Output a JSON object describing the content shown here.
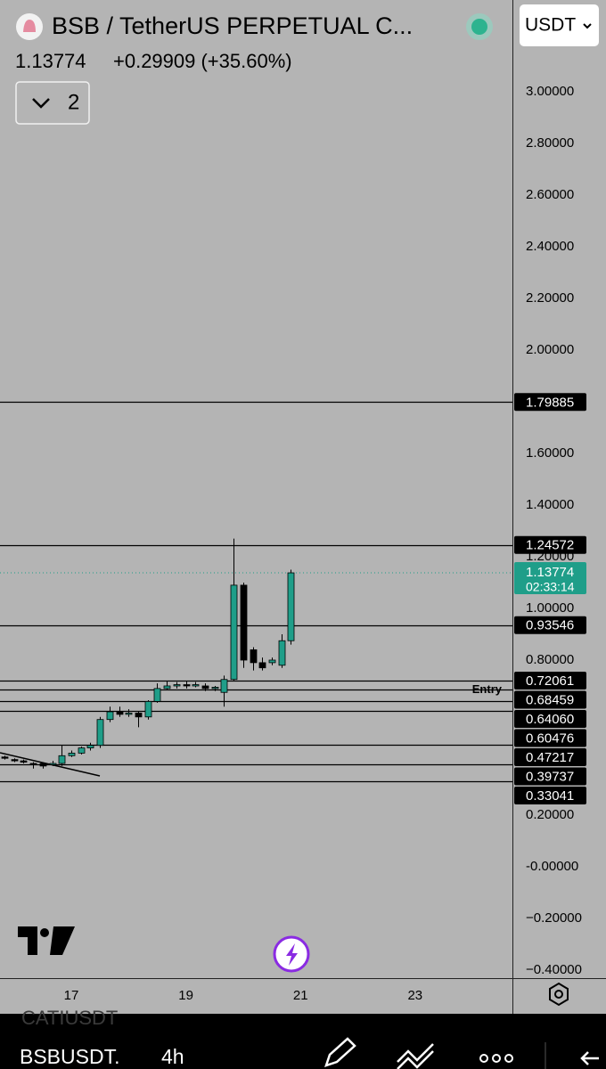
{
  "header": {
    "title": "BSB / TetherUS PERPETUAL C...",
    "price": "1.13774",
    "change": "+0.29909 (+35.60%)",
    "indicator_count": "2",
    "currency": "USDT"
  },
  "chart_data": {
    "type": "candlestick",
    "x": [
      15.833,
      16.0,
      16.167,
      16.333,
      16.5,
      16.667,
      16.833,
      17.0,
      17.167,
      17.333,
      17.5,
      17.667,
      17.833,
      18.0,
      18.167,
      18.333,
      18.5,
      18.667,
      18.833,
      19.0,
      19.167,
      19.333,
      19.5,
      19.667,
      19.833,
      20.0,
      20.167,
      20.333,
      20.5,
      20.667,
      20.833
    ],
    "open": [
      0.425,
      0.415,
      0.41,
      0.4,
      0.4,
      0.395,
      0.4,
      0.43,
      0.44,
      0.46,
      0.47,
      0.57,
      0.6,
      0.59,
      0.595,
      0.58,
      0.64,
      0.69,
      0.7,
      0.705,
      0.7,
      0.7,
      0.69,
      0.675,
      0.725,
      1.09,
      0.84,
      0.79,
      0.79,
      0.78,
      0.875
    ],
    "high": [
      0.43,
      0.42,
      0.415,
      0.405,
      0.405,
      0.41,
      0.47,
      0.45,
      0.465,
      0.48,
      0.58,
      0.62,
      0.62,
      0.61,
      0.6,
      0.645,
      0.71,
      0.72,
      0.715,
      0.72,
      0.715,
      0.71,
      0.7,
      0.74,
      1.27,
      1.1,
      0.85,
      0.81,
      0.81,
      0.9,
      1.15
    ],
    "low": [
      0.415,
      0.405,
      0.4,
      0.38,
      0.38,
      0.39,
      0.39,
      0.425,
      0.435,
      0.45,
      0.46,
      0.56,
      0.58,
      0.58,
      0.54,
      0.57,
      0.635,
      0.685,
      0.69,
      0.69,
      0.695,
      0.68,
      0.68,
      0.62,
      0.72,
      0.77,
      0.76,
      0.76,
      0.78,
      0.77,
      0.86
    ],
    "close": [
      0.42,
      0.41,
      0.405,
      0.395,
      0.39,
      0.4,
      0.43,
      0.44,
      0.46,
      0.47,
      0.57,
      0.6,
      0.59,
      0.595,
      0.58,
      0.64,
      0.69,
      0.7,
      0.705,
      0.7,
      0.705,
      0.69,
      0.695,
      0.725,
      1.09,
      0.8,
      0.79,
      0.77,
      0.8,
      0.875,
      1.13774
    ],
    "up_color": "#1f9e89",
    "down_color": "#000000",
    "xlim": [
      15.756,
      24.698
    ],
    "xticks": [
      17,
      19,
      21,
      23
    ],
    "ylim": [
      -0.431,
      3.355
    ],
    "yticks": [
      {
        "value": 3.0,
        "label": "3.00000"
      },
      {
        "value": 2.8,
        "label": "2.80000"
      },
      {
        "value": 2.6,
        "label": "2.60000"
      },
      {
        "value": 2.4,
        "label": "2.40000"
      },
      {
        "value": 2.2,
        "label": "2.20000"
      },
      {
        "value": 2.0,
        "label": "2.00000"
      },
      {
        "value": 1.6,
        "label": "1.60000"
      },
      {
        "value": 1.4,
        "label": "1.40000"
      },
      {
        "value": 1.2,
        "label": "1.20000"
      },
      {
        "value": 1.0,
        "label": "1.00000"
      },
      {
        "value": 0.8,
        "label": "0.80000"
      },
      {
        "value": 0.2,
        "label": "0.20000"
      },
      {
        "value": 0,
        "label": "-0.00000"
      },
      {
        "value": -0.2,
        "label": "−0.20000"
      },
      {
        "value": -0.4,
        "label": "−0.40000"
      }
    ],
    "grid": false,
    "levels": [
      {
        "value": 1.79885,
        "label": "1.79885"
      },
      {
        "value": 1.24572,
        "label": "1.24572"
      },
      {
        "value": 0.93546,
        "label": "0.93546"
      },
      {
        "value": 0.72061,
        "label": "0.72061"
      },
      {
        "value": 0.68459,
        "label": "0.68459",
        "annotation": "Entry"
      },
      {
        "value": 0.6406,
        "label": "0.64060"
      },
      {
        "value": 0.60476,
        "label": "0.60476"
      },
      {
        "value": 0.47217,
        "label": "0.47217"
      },
      {
        "value": 0.39737,
        "label": "0.39737"
      },
      {
        "value": 0.33041,
        "label": "0.33041"
      }
    ],
    "current_price": {
      "value": 1.13774,
      "label": "1.13774",
      "countdown": "02:33:14"
    }
  },
  "footer": {
    "previous_symbol": "CATIUSDT",
    "symbol": "BSBUSDT.",
    "interval": "4h"
  }
}
